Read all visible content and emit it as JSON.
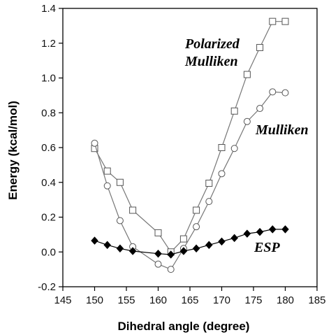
{
  "chart_data": {
    "type": "line",
    "xlabel": "Dihedral angle (degree)",
    "ylabel": "Energy (kcal/mol)",
    "xlim": [
      145,
      185
    ],
    "ylim": [
      -0.2,
      1.4
    ],
    "xticks": [
      145,
      150,
      155,
      160,
      165,
      170,
      175,
      180,
      185
    ],
    "yticks": [
      -0.2,
      0.0,
      0.2,
      0.4,
      0.6,
      0.8,
      1.0,
      1.2,
      1.4
    ],
    "ytick_labels": [
      "-0.2",
      "0.0",
      "0.2",
      "0.4",
      "0.6",
      "0.8",
      "1.0",
      "1.2",
      "1.4"
    ],
    "grid": false,
    "legend": "none",
    "series": [
      {
        "name": "Polarized Mulliken",
        "label_lines": [
          "Polarized",
          "Mulliken"
        ],
        "marker": "square-open",
        "color": "#777777",
        "x": [
          150,
          152,
          154,
          156,
          160,
          162,
          164,
          166,
          168,
          170,
          172,
          174,
          176,
          178,
          180
        ],
        "y": [
          0.595,
          0.465,
          0.4,
          0.24,
          0.11,
          0.0,
          0.075,
          0.24,
          0.395,
          0.6,
          0.81,
          1.02,
          1.175,
          1.325,
          1.325
        ]
      },
      {
        "name": "Mulliken",
        "label_lines": [
          "Mulliken"
        ],
        "marker": "circle-open",
        "color": "#777777",
        "x": [
          150,
          152,
          154,
          156,
          160,
          162,
          164,
          166,
          168,
          170,
          172,
          174,
          176,
          178,
          180
        ],
        "y": [
          0.625,
          0.38,
          0.18,
          0.03,
          -0.07,
          -0.1,
          0.02,
          0.145,
          0.29,
          0.45,
          0.595,
          0.75,
          0.825,
          0.92,
          0.915
        ]
      },
      {
        "name": "ESP",
        "label_lines": [
          "ESP"
        ],
        "marker": "diamond-filled",
        "color": "#000000",
        "x": [
          150,
          152,
          154,
          156,
          160,
          162,
          164,
          166,
          168,
          170,
          172,
          174,
          176,
          178,
          180
        ],
        "y": [
          0.065,
          0.04,
          0.02,
          0.005,
          -0.01,
          -0.015,
          0.005,
          0.02,
          0.04,
          0.06,
          0.08,
          0.105,
          0.115,
          0.13,
          0.13
        ]
      }
    ]
  }
}
